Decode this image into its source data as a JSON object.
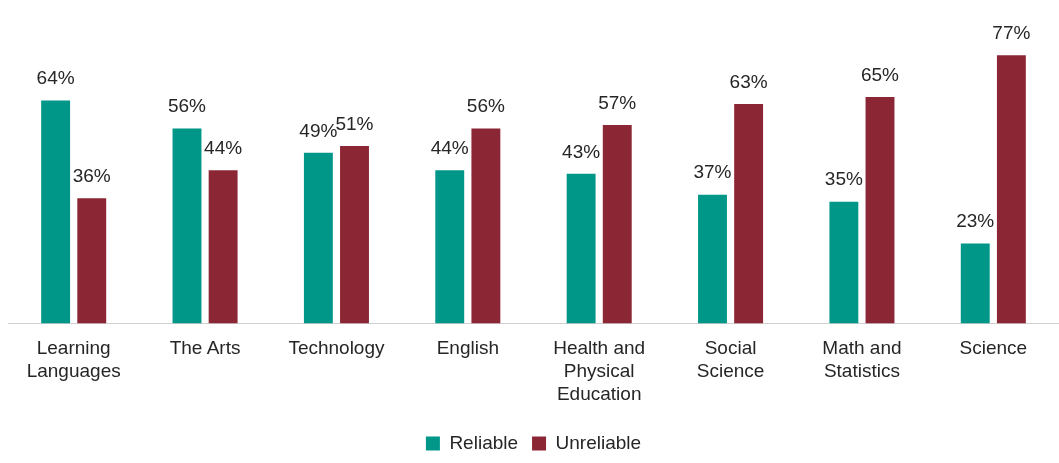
{
  "chart_data": {
    "type": "bar",
    "categories": [
      "Learning Languages",
      "The Arts",
      "Technology",
      "English",
      "Health and Physical Education",
      "Social Science",
      "Math and Statistics",
      "Science"
    ],
    "series": [
      {
        "name": "Reliable",
        "color": "#009688",
        "values": [
          64,
          56,
          49,
          44,
          43,
          37,
          35,
          23
        ],
        "value_labels": [
          "64%",
          "56%",
          "49%",
          "44%",
          "43%",
          "37%",
          "35%",
          "23%"
        ]
      },
      {
        "name": "Unreliable",
        "color": "#8b2635",
        "values": [
          36,
          44,
          51,
          56,
          57,
          63,
          65,
          77
        ],
        "value_labels": [
          "36%",
          "44%",
          "51%",
          "56%",
          "57%",
          "63%",
          "65%",
          "77%"
        ]
      }
    ],
    "legend": "bottom",
    "grid": false,
    "tick_labels": "x"
  }
}
